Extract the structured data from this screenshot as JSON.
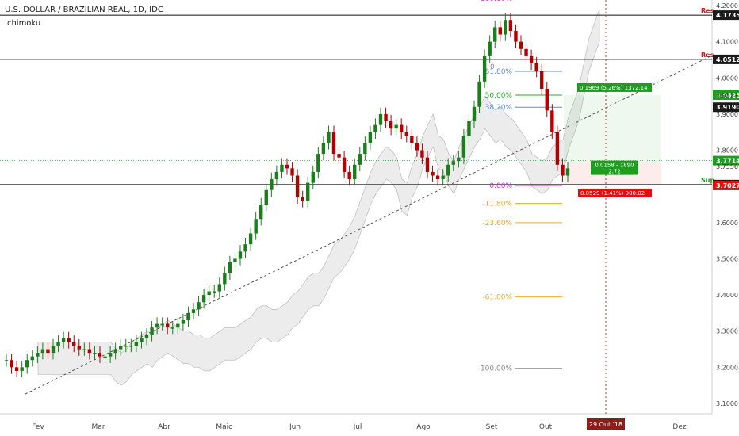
{
  "header": {
    "title": "U.S. DOLLAR / BRAZILIAN REAL, 1D, IDC",
    "indicator": "Ichimoku"
  },
  "colors": {
    "up": "#1b7d1b",
    "down": "#b30000",
    "cloud": "#e8e8e8",
    "cloud_line": "#9e9e9e",
    "fib_purple": "#cc33cc",
    "fib_blue": "#5b8fd8",
    "fib_green": "#2eaa2e",
    "fib_orange": "#f5a623",
    "fib_gray": "#888888",
    "black_label": "#1a1a1a",
    "green_label": "#1e9e1e",
    "red_label": "#e01010",
    "event_line": "#c0392b",
    "date_badge": "#8b1d1d"
  },
  "chart_data": {
    "type": "candlestick",
    "title": "U.S. DOLLAR / BRAZILIAN REAL, 1D, IDC",
    "x_range": [
      "2018-01-25",
      "2018-12-15"
    ],
    "ylim": [
      3.07,
      4.23
    ],
    "x_ticks": [
      "Fev",
      "Mar",
      "Abr",
      "Maio",
      "Jun",
      "Jul",
      "Ago",
      "Set",
      "Out",
      "Dez"
    ],
    "y_ticks": [
      "3.1000",
      "3.2000",
      "3.3000",
      "3.4000",
      "3.5000",
      "3.6000",
      "3.7000",
      "3.8000",
      "3.9000",
      "4.0000",
      "4.1000",
      "4.2000"
    ],
    "candles_close": [
      3.22,
      3.2,
      3.19,
      3.2,
      3.22,
      3.23,
      3.24,
      3.25,
      3.24,
      3.26,
      3.27,
      3.28,
      3.27,
      3.26,
      3.25,
      3.25,
      3.24,
      3.24,
      3.23,
      3.23,
      3.24,
      3.25,
      3.26,
      3.26,
      3.26,
      3.27,
      3.28,
      3.29,
      3.31,
      3.32,
      3.32,
      3.31,
      3.31,
      3.32,
      3.33,
      3.35,
      3.36,
      3.38,
      3.4,
      3.41,
      3.41,
      3.43,
      3.46,
      3.49,
      3.5,
      3.52,
      3.54,
      3.57,
      3.61,
      3.65,
      3.69,
      3.72,
      3.74,
      3.76,
      3.75,
      3.73,
      3.67,
      3.66,
      3.71,
      3.74,
      3.79,
      3.82,
      3.85,
      3.79,
      3.78,
      3.74,
      3.72,
      3.76,
      3.79,
      3.82,
      3.85,
      3.87,
      3.9,
      3.88,
      3.86,
      3.87,
      3.85,
      3.84,
      3.82,
      3.8,
      3.78,
      3.74,
      3.73,
      3.72,
      3.73,
      3.76,
      3.77,
      3.78,
      3.84,
      3.88,
      3.92,
      3.99,
      4.06,
      4.1,
      4.14,
      4.12,
      4.16,
      4.13,
      4.1,
      4.08,
      4.06,
      4.04,
      4.02,
      3.97,
      3.91,
      3.85,
      3.76,
      3.73,
      3.75
    ],
    "horizontal_levels": [
      {
        "label": "Res",
        "value": 4.1735
      },
      {
        "label": "Res",
        "value": 4.0512
      },
      {
        "label": "Sup",
        "value": 3.7051
      }
    ],
    "fib_levels": [
      {
        "label": "100.00%",
        "value": 4.22
      },
      {
        "label": "61.80%",
        "value": 4.018
      },
      {
        "label": "50.00%",
        "value": 3.9525
      },
      {
        "label": "38.20%",
        "value": 3.919
      },
      {
        "label": "0.00%",
        "value": 3.7027
      },
      {
        "label": "-11.80%",
        "value": 3.653
      },
      {
        "label": "-23.60%",
        "value": 3.6
      },
      {
        "label": "-61.00%",
        "value": 3.395
      },
      {
        "label": "-100.00%",
        "value": 3.197
      }
    ],
    "price_labels": [
      {
        "text": "4.1735",
        "value": 4.1735,
        "kind": "black"
      },
      {
        "text": "4.0512",
        "value": 4.0512,
        "kind": "black"
      },
      {
        "text": "3.9525",
        "value": 3.9525,
        "kind": "green"
      },
      {
        "text": "3.9527",
        "value": 3.9527,
        "kind": "plain"
      },
      {
        "text": "3.9190",
        "value": 3.919,
        "kind": "black"
      },
      {
        "text": "3.7714",
        "value": 3.7714,
        "kind": "green"
      },
      {
        "text": "3.7556",
        "value": 3.7556,
        "kind": "plain"
      },
      {
        "text": "3.7051",
        "value": 3.7051,
        "kind": "black"
      },
      {
        "text": "3.7027",
        "value": 3.7027,
        "kind": "red"
      }
    ],
    "annotations": [
      {
        "text": "0.1969 (5.26%) 1372.14",
        "kind": "green"
      },
      {
        "text": "0.0158 - 1890",
        "kind": "green"
      },
      {
        "text": "2.72",
        "kind": "green"
      },
      {
        "text": "0.0529 (1.41%) 900.02",
        "kind": "red"
      },
      {
        "text": "0",
        "kind": "plain"
      }
    ],
    "event_date": "29 Out '18"
  }
}
